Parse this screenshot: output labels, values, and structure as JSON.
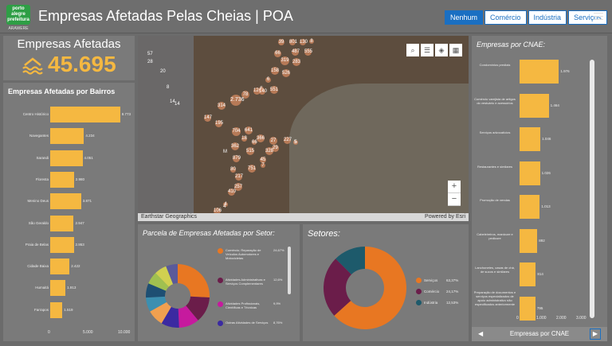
{
  "header": {
    "logo_top": "porto alegre prefeitura",
    "logo_bottom": "ARAWERE",
    "title": "Empresas Afetadas Pelas Cheias | POA",
    "tabs": [
      {
        "label": "Nenhum",
        "active": true
      },
      {
        "label": "Comércio",
        "active": false
      },
      {
        "label": "Indústria",
        "active": false
      },
      {
        "label": "Serviços",
        "active": false
      }
    ]
  },
  "kpi": {
    "label": "Empresas Afetadas",
    "value": "45.695",
    "icon": "flood-icon"
  },
  "bairros": {
    "title": "Empresas Afetadas por Bairros",
    "chart_data": {
      "type": "bar",
      "orientation": "horizontal",
      "categories": [
        "Centro Histórico",
        "Navegantes",
        "Sarandi",
        "Floresta",
        "Menino Deus",
        "São Geraldo",
        "Praia de Belas",
        "Cidade Baixa",
        "Humaitá",
        "Farrapos"
      ],
      "values": [
        8773,
        4234,
        4051,
        2980,
        3871,
        2947,
        2953,
        2422,
        1913,
        1519
      ],
      "value_labels": [
        "8.773",
        "4.234",
        "4.051",
        "2.980",
        "3.871",
        "2.947",
        "2.953",
        "2.422",
        "1.913",
        "1.519"
      ],
      "xlim": [
        0,
        10000
      ],
      "xticks": [
        "0",
        "5.000",
        "10.000"
      ]
    }
  },
  "map": {
    "attribution_left": "Earthstar Geographics",
    "attribution_right": "Powered by Esri",
    "buttons": [
      "search-icon",
      "list-icon",
      "layers-icon",
      "basemap-icon"
    ],
    "zoom_in": "+",
    "zoom_out": "−",
    "clusters": [
      "39",
      "801",
      "130",
      "8",
      "487",
      "555",
      "66",
      "319",
      "283",
      "158",
      "526",
      "6",
      "5",
      "551",
      "78",
      "124",
      "140",
      "2.736",
      "314",
      "147",
      "195",
      "704",
      "641",
      "366",
      "18",
      "66",
      "362",
      "27",
      "29",
      "515",
      "328",
      "227",
      "5",
      "879",
      "45",
      "751",
      "7",
      "80",
      "217",
      "257",
      "410",
      "106",
      "4"
    ],
    "plain_labels": [
      "57",
      "28",
      "20",
      "8",
      "14",
      "14",
      "5",
      "4",
      "M"
    ]
  },
  "parcela": {
    "title": "Parcela de Empresas Afetadas por Setor:",
    "chart_data": {
      "type": "pie",
      "labels": [
        "Comércio; Reparação de Veículos Automotores e Motocicletas",
        "Atividades Administrativas e Serviços Complementares",
        "Atividades Profissionais, Científicas e Técnicas",
        "Outras Atividades de Serviços"
      ],
      "values": [
        24.67,
        12.6,
        9.9,
        8.76
      ],
      "value_labels": [
        "24,67%",
        "12,6%",
        "9,9%",
        "8,76%"
      ],
      "colors": [
        "#e87722",
        "#6b1d4a",
        "#c61a9e",
        "#3b2aa1"
      ],
      "other_colors": [
        "#f0a050",
        "#3c8fb0",
        "#1e4f73",
        "#a0c050",
        "#d0d050",
        "#5a5a9a"
      ]
    }
  },
  "setores": {
    "title": "Setores:",
    "chart_data": {
      "type": "pie",
      "labels": [
        "Serviços",
        "Comércio",
        "Indústria"
      ],
      "values": [
        63.37,
        24.17,
        12.53
      ],
      "value_labels": [
        "63,37%",
        "24,17%",
        "12,53%"
      ],
      "colors": [
        "#e87722",
        "#6b1d4a",
        "#1d5a6b"
      ]
    }
  },
  "cnae": {
    "title": "Empresas por CNAE:",
    "footer_label": "Empresas por CNAE",
    "prev": "◀",
    "next": "▶",
    "chart_data": {
      "type": "bar",
      "orientation": "horizontal",
      "categories": [
        "Condomínios prediais",
        "Comércio varejista de artigos do vestuário e acessórios",
        "Serviços advocatícios",
        "Restaurantes e similares",
        "Promoção de vendas",
        "Cabeleireiros, manicure e pedicure",
        "Lanchonetes, casas de chá, de sucos e similares",
        "Preparação de documentos e serviços especializados de apoio administrativo não especificados anteriormente"
      ],
      "values": [
        1976,
        1464,
        1046,
        1026,
        1013,
        892,
        814,
        795
      ],
      "value_labels": [
        "1.976",
        "1.464",
        "1.046",
        "1.026",
        "1.013",
        "892",
        "814",
        "795"
      ],
      "xlim": [
        0,
        3000
      ],
      "xticks": [
        "0",
        "1.000",
        "2.000",
        "3.000"
      ]
    }
  }
}
